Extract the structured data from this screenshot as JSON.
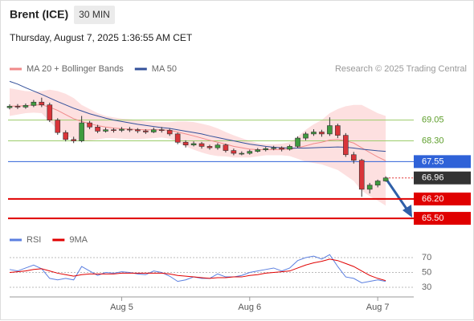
{
  "header": {
    "symbol": "Brent (ICE)",
    "interval": "30 MIN",
    "timestamp": "Thursday, August 7, 2025 1:36:55 AM CET"
  },
  "chart_data": [
    {
      "type": "candlestick",
      "credit": "Research © 2025 Trading Central",
      "ylim": [
        65.27,
        70.49
      ],
      "open": [
        69.5,
        69.55,
        69.52,
        69.58,
        69.7,
        69.6,
        69.05,
        68.6,
        68.35,
        68.3,
        68.95,
        68.8,
        68.65,
        68.7,
        68.68,
        68.72,
        68.7,
        68.66,
        68.62,
        68.7,
        68.68,
        68.55,
        68.25,
        68.15,
        68.2,
        68.1,
        68.05,
        68.15,
        67.95,
        67.85,
        67.85,
        67.92,
        67.98,
        68.02,
        68.05,
        68.0,
        68.1,
        68.4,
        68.55,
        68.62,
        68.55,
        68.85,
        68.5,
        67.8,
        67.6,
        66.55,
        66.7,
        66.85
      ],
      "high": [
        69.62,
        69.63,
        69.65,
        69.78,
        69.86,
        69.68,
        69.12,
        68.68,
        68.45,
        69.2,
        69.02,
        68.88,
        68.78,
        68.76,
        68.8,
        68.8,
        68.76,
        68.72,
        68.78,
        68.8,
        68.74,
        68.6,
        68.32,
        68.28,
        68.26,
        68.16,
        68.22,
        68.2,
        68.02,
        67.92,
        67.98,
        68.04,
        68.08,
        68.12,
        68.1,
        68.16,
        68.46,
        68.62,
        68.72,
        68.7,
        69.15,
        68.92,
        68.58,
        67.9,
        67.65,
        66.78,
        66.9,
        67.02
      ],
      "low": [
        69.44,
        69.45,
        69.46,
        69.52,
        69.52,
        68.98,
        68.52,
        68.28,
        68.22,
        68.25,
        68.72,
        68.58,
        68.6,
        68.6,
        68.62,
        68.62,
        68.58,
        68.55,
        68.58,
        68.6,
        68.48,
        68.18,
        68.06,
        68.1,
        68.02,
        67.98,
        67.98,
        67.88,
        67.78,
        67.78,
        67.8,
        67.88,
        67.92,
        67.96,
        67.92,
        67.95,
        68.05,
        68.32,
        68.48,
        68.45,
        68.48,
        68.4,
        67.72,
        67.48,
        66.28,
        66.4,
        66.62,
        66.82
      ],
      "close": [
        69.55,
        69.52,
        69.58,
        69.7,
        69.6,
        69.05,
        68.6,
        68.35,
        68.3,
        68.95,
        68.8,
        68.65,
        68.7,
        68.68,
        68.72,
        68.7,
        68.66,
        68.62,
        68.7,
        68.68,
        68.55,
        68.25,
        68.15,
        68.2,
        68.1,
        68.05,
        68.15,
        67.95,
        67.85,
        67.85,
        67.92,
        67.98,
        68.02,
        68.05,
        68.0,
        68.1,
        68.4,
        68.55,
        68.62,
        68.55,
        68.85,
        68.5,
        67.8,
        67.6,
        66.55,
        66.7,
        66.85,
        66.96
      ],
      "up_color": "#3f9b3f",
      "down_color": "#d9353a",
      "series": [
        {
          "name": "MA 20 + Bollinger Bands",
          "color": "#f08a8a",
          "band_color": "#fde0e0",
          "values": [
            69.55,
            69.56,
            69.57,
            69.6,
            69.6,
            69.52,
            69.4,
            69.25,
            69.1,
            69.0,
            68.92,
            68.85,
            68.8,
            68.76,
            68.74,
            68.72,
            68.71,
            68.7,
            68.7,
            68.7,
            68.68,
            68.62,
            68.55,
            68.48,
            68.4,
            68.32,
            68.25,
            68.18,
            68.1,
            68.05,
            68.0,
            67.98,
            67.98,
            67.98,
            67.99,
            68.0,
            68.05,
            68.12,
            68.2,
            68.25,
            68.33,
            68.35,
            68.3,
            68.22,
            68.05,
            67.88,
            67.72,
            67.58
          ],
          "upper": [
            70.2,
            70.15,
            70.1,
            70.08,
            70.1,
            70.15,
            70.1,
            70.0,
            69.85,
            69.6,
            69.45,
            69.3,
            69.2,
            69.15,
            69.1,
            69.08,
            69.05,
            69.0,
            68.98,
            68.98,
            68.98,
            69.0,
            69.0,
            68.98,
            68.92,
            68.85,
            68.75,
            68.62,
            68.5,
            68.4,
            68.3,
            68.22,
            68.18,
            68.18,
            68.2,
            68.25,
            68.45,
            68.7,
            68.9,
            69.05,
            69.3,
            69.45,
            69.55,
            69.6,
            69.6,
            69.45,
            69.3,
            69.2
          ],
          "lower": [
            69.2,
            69.25,
            69.3,
            69.32,
            69.3,
            69.0,
            68.7,
            68.5,
            68.35,
            68.3,
            68.32,
            68.35,
            68.4,
            68.4,
            68.38,
            68.36,
            68.36,
            68.38,
            68.4,
            68.42,
            68.38,
            68.24,
            68.1,
            67.98,
            67.88,
            67.8,
            67.75,
            67.74,
            67.7,
            67.7,
            67.7,
            67.74,
            67.78,
            67.78,
            67.78,
            67.75,
            67.65,
            67.55,
            67.5,
            67.45,
            67.35,
            67.25,
            67.05,
            66.85,
            66.5,
            66.3,
            66.14,
            65.96
          ]
        },
        {
          "name": "MA 50",
          "color": "#33509a",
          "values": [
            70.45,
            70.35,
            70.22,
            70.1,
            69.98,
            69.85,
            69.72,
            69.6,
            69.48,
            69.38,
            69.28,
            69.2,
            69.12,
            69.05,
            69.0,
            68.95,
            68.9,
            68.86,
            68.82,
            68.78,
            68.75,
            68.7,
            68.65,
            68.6,
            68.55,
            68.48,
            68.42,
            68.36,
            68.3,
            68.24,
            68.18,
            68.14,
            68.1,
            68.07,
            68.05,
            68.04,
            68.04,
            68.04,
            68.05,
            68.06,
            68.07,
            68.08,
            68.07,
            68.04,
            68.0,
            67.97,
            67.94,
            67.92
          ]
        }
      ],
      "levels": [
        {
          "value": 69.05,
          "color": "#9ccc6a",
          "text_color": "#5d9e2a",
          "style": "plain"
        },
        {
          "value": 68.3,
          "label": "68.30",
          "color": "#9ccc6a",
          "text_color": "#5d9e2a",
          "style": "plain"
        },
        {
          "value": 67.55,
          "color": "#2f62d8",
          "text_color": "#ffffff",
          "style": "box"
        },
        {
          "value": 66.96,
          "color": "#333333",
          "text_color": "#ffffff",
          "style": "current",
          "line_color": "#e03030"
        },
        {
          "value": 66.2,
          "label": "66.20",
          "color": "#e00000",
          "text_color": "#ffffff",
          "style": "box"
        },
        {
          "value": 65.5,
          "label": "65.50",
          "color": "#e00000",
          "text_color": "#ffffff",
          "style": "box"
        }
      ]
    },
    {
      "type": "line",
      "ylim": [
        19.2,
        87.3
      ],
      "yticks": [
        30,
        50,
        70
      ],
      "categories": [
        null,
        null,
        null,
        null,
        null,
        null,
        null,
        null,
        null,
        null,
        null,
        null,
        null,
        null,
        "Aug 5",
        null,
        null,
        null,
        null,
        null,
        null,
        null,
        null,
        null,
        null,
        null,
        null,
        null,
        null,
        null,
        "Aug 6",
        null,
        null,
        null,
        null,
        null,
        null,
        null,
        null,
        null,
        null,
        null,
        null,
        null,
        null,
        null,
        "Aug 7",
        null
      ],
      "series": [
        {
          "name": "RSI",
          "color": "#5b7fe0",
          "values": [
            54,
            52,
            56,
            60,
            55,
            42,
            40,
            42,
            40,
            58,
            52,
            46,
            50,
            49,
            51,
            50,
            48,
            47,
            52,
            50,
            45,
            38,
            40,
            44,
            42,
            42,
            48,
            44,
            44,
            46,
            50,
            52,
            54,
            56,
            52,
            56,
            66,
            70,
            72,
            68,
            74,
            58,
            44,
            42,
            36,
            38,
            40,
            38
          ]
        },
        {
          "name": "9MA",
          "color": "#e00000",
          "values": [
            50,
            51,
            52,
            54,
            55,
            52,
            49,
            47,
            45,
            47,
            48,
            48,
            48,
            48,
            49,
            49,
            49,
            49,
            49,
            49,
            48,
            46,
            45,
            44,
            43,
            42,
            43,
            43,
            44,
            44,
            46,
            47,
            49,
            50,
            51,
            52,
            56,
            60,
            63,
            65,
            68,
            66,
            62,
            58,
            52,
            46,
            42,
            39
          ]
        }
      ]
    }
  ]
}
